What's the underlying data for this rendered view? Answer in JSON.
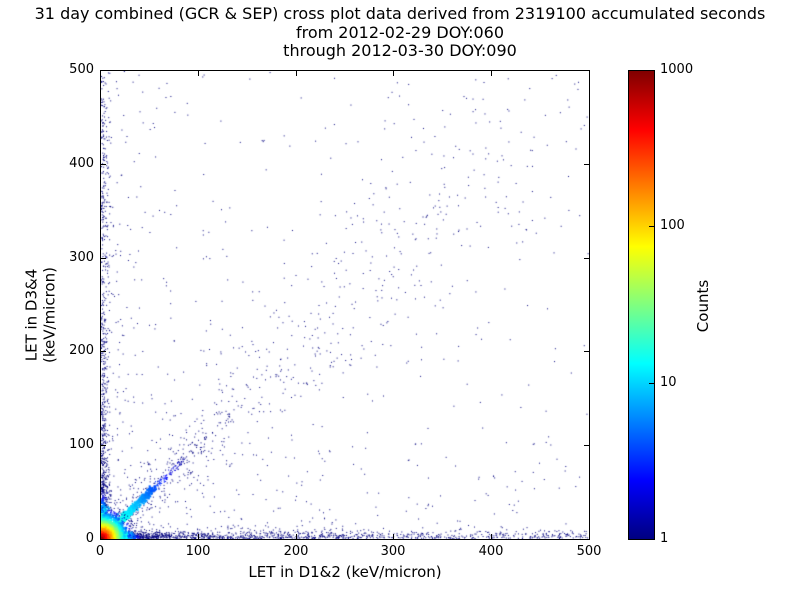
{
  "chart_data": {
    "type": "scatter",
    "subtype": "2d-density-cross-plot",
    "title": "31 day combined (GCR & SEP) cross plot data derived from 2319100 accumulated seconds",
    "subtitle_from": "from 2012-02-29 DOY:060",
    "subtitle_through": "through 2012-03-30 DOY:090",
    "accumulated_seconds": "2319100",
    "date_start": "2012-02-29",
    "doy_start": "060",
    "date_end": "2012-03-30",
    "doy_end": "090",
    "xlabel": "LET in D1&2 (keV/micron)",
    "ylabel": "LET in D3&4 (keV/micron)",
    "xlim": [
      0,
      500
    ],
    "ylim": [
      0,
      500
    ],
    "xticks": [
      "0",
      "100",
      "200",
      "300",
      "400",
      "500"
    ],
    "yticks": [
      "0",
      "100",
      "200",
      "300",
      "400",
      "500"
    ],
    "grid": false,
    "background": "#ffffff",
    "axis_color": "#000000",
    "colorbar": {
      "label": "Counts",
      "scale": "log",
      "min": 1,
      "max": 1000,
      "ticks": [
        "1",
        "10",
        "100",
        "1000"
      ],
      "colormap": "jet",
      "gradient_stops": [
        {
          "color": "#000080",
          "pos": 0
        },
        {
          "color": "#0000ff",
          "pos": 12.5
        },
        {
          "color": "#00ffff",
          "pos": 37.5
        },
        {
          "color": "#ffff00",
          "pos": 62.5
        },
        {
          "color": "#ff0000",
          "pos": 87.5
        },
        {
          "color": "#800000",
          "pos": 100
        }
      ]
    },
    "description": "Dense hot spot (counts up to ~1000, red/orange/yellow) at the origin hugging both axes below ~25 keV/micron; bright cyan-blue streak along the y=x diagonal out to ~60; sparse single-count (dark blue) events scattered over the whole plane, concentrated along both axes and along the diagonal out to ~400.",
    "distribution": {
      "seed": 1337,
      "features": [
        {
          "name": "sparse-field",
          "type": "field",
          "n": 900,
          "pow": 2.2
        },
        {
          "name": "diagonal-cloud",
          "type": "diagonal-wide",
          "n": 700,
          "upow": 1.6,
          "spread": 0.13
        },
        {
          "name": "bottom-axis-band",
          "type": "band",
          "axis": "x",
          "n": 1500,
          "pow": 2.6,
          "sigma": 4
        },
        {
          "name": "left-axis-band",
          "type": "band",
          "axis": "y",
          "n": 900,
          "pow": 2.6,
          "sigma": 4
        },
        {
          "name": "diagonal-streak",
          "type": "diagonal-exp",
          "n": 900,
          "scale": 30,
          "jitter": 1.8,
          "peak": 35,
          "decay": 25
        },
        {
          "name": "hot-bottom-smear",
          "type": "band-exp",
          "axis": "x",
          "n": 700,
          "scale": 14,
          "sigma": 2.5,
          "peak": 500,
          "decay": 7
        },
        {
          "name": "hot-left-smear",
          "type": "band-exp",
          "axis": "y",
          "n": 600,
          "scale": 16,
          "sigma": 2.5,
          "peak": 300,
          "decay": 9
        },
        {
          "name": "origin-hot-core",
          "type": "radial-exp",
          "n": 2400,
          "scale": 9,
          "peak": 1000,
          "decay": 5
        }
      ]
    }
  }
}
